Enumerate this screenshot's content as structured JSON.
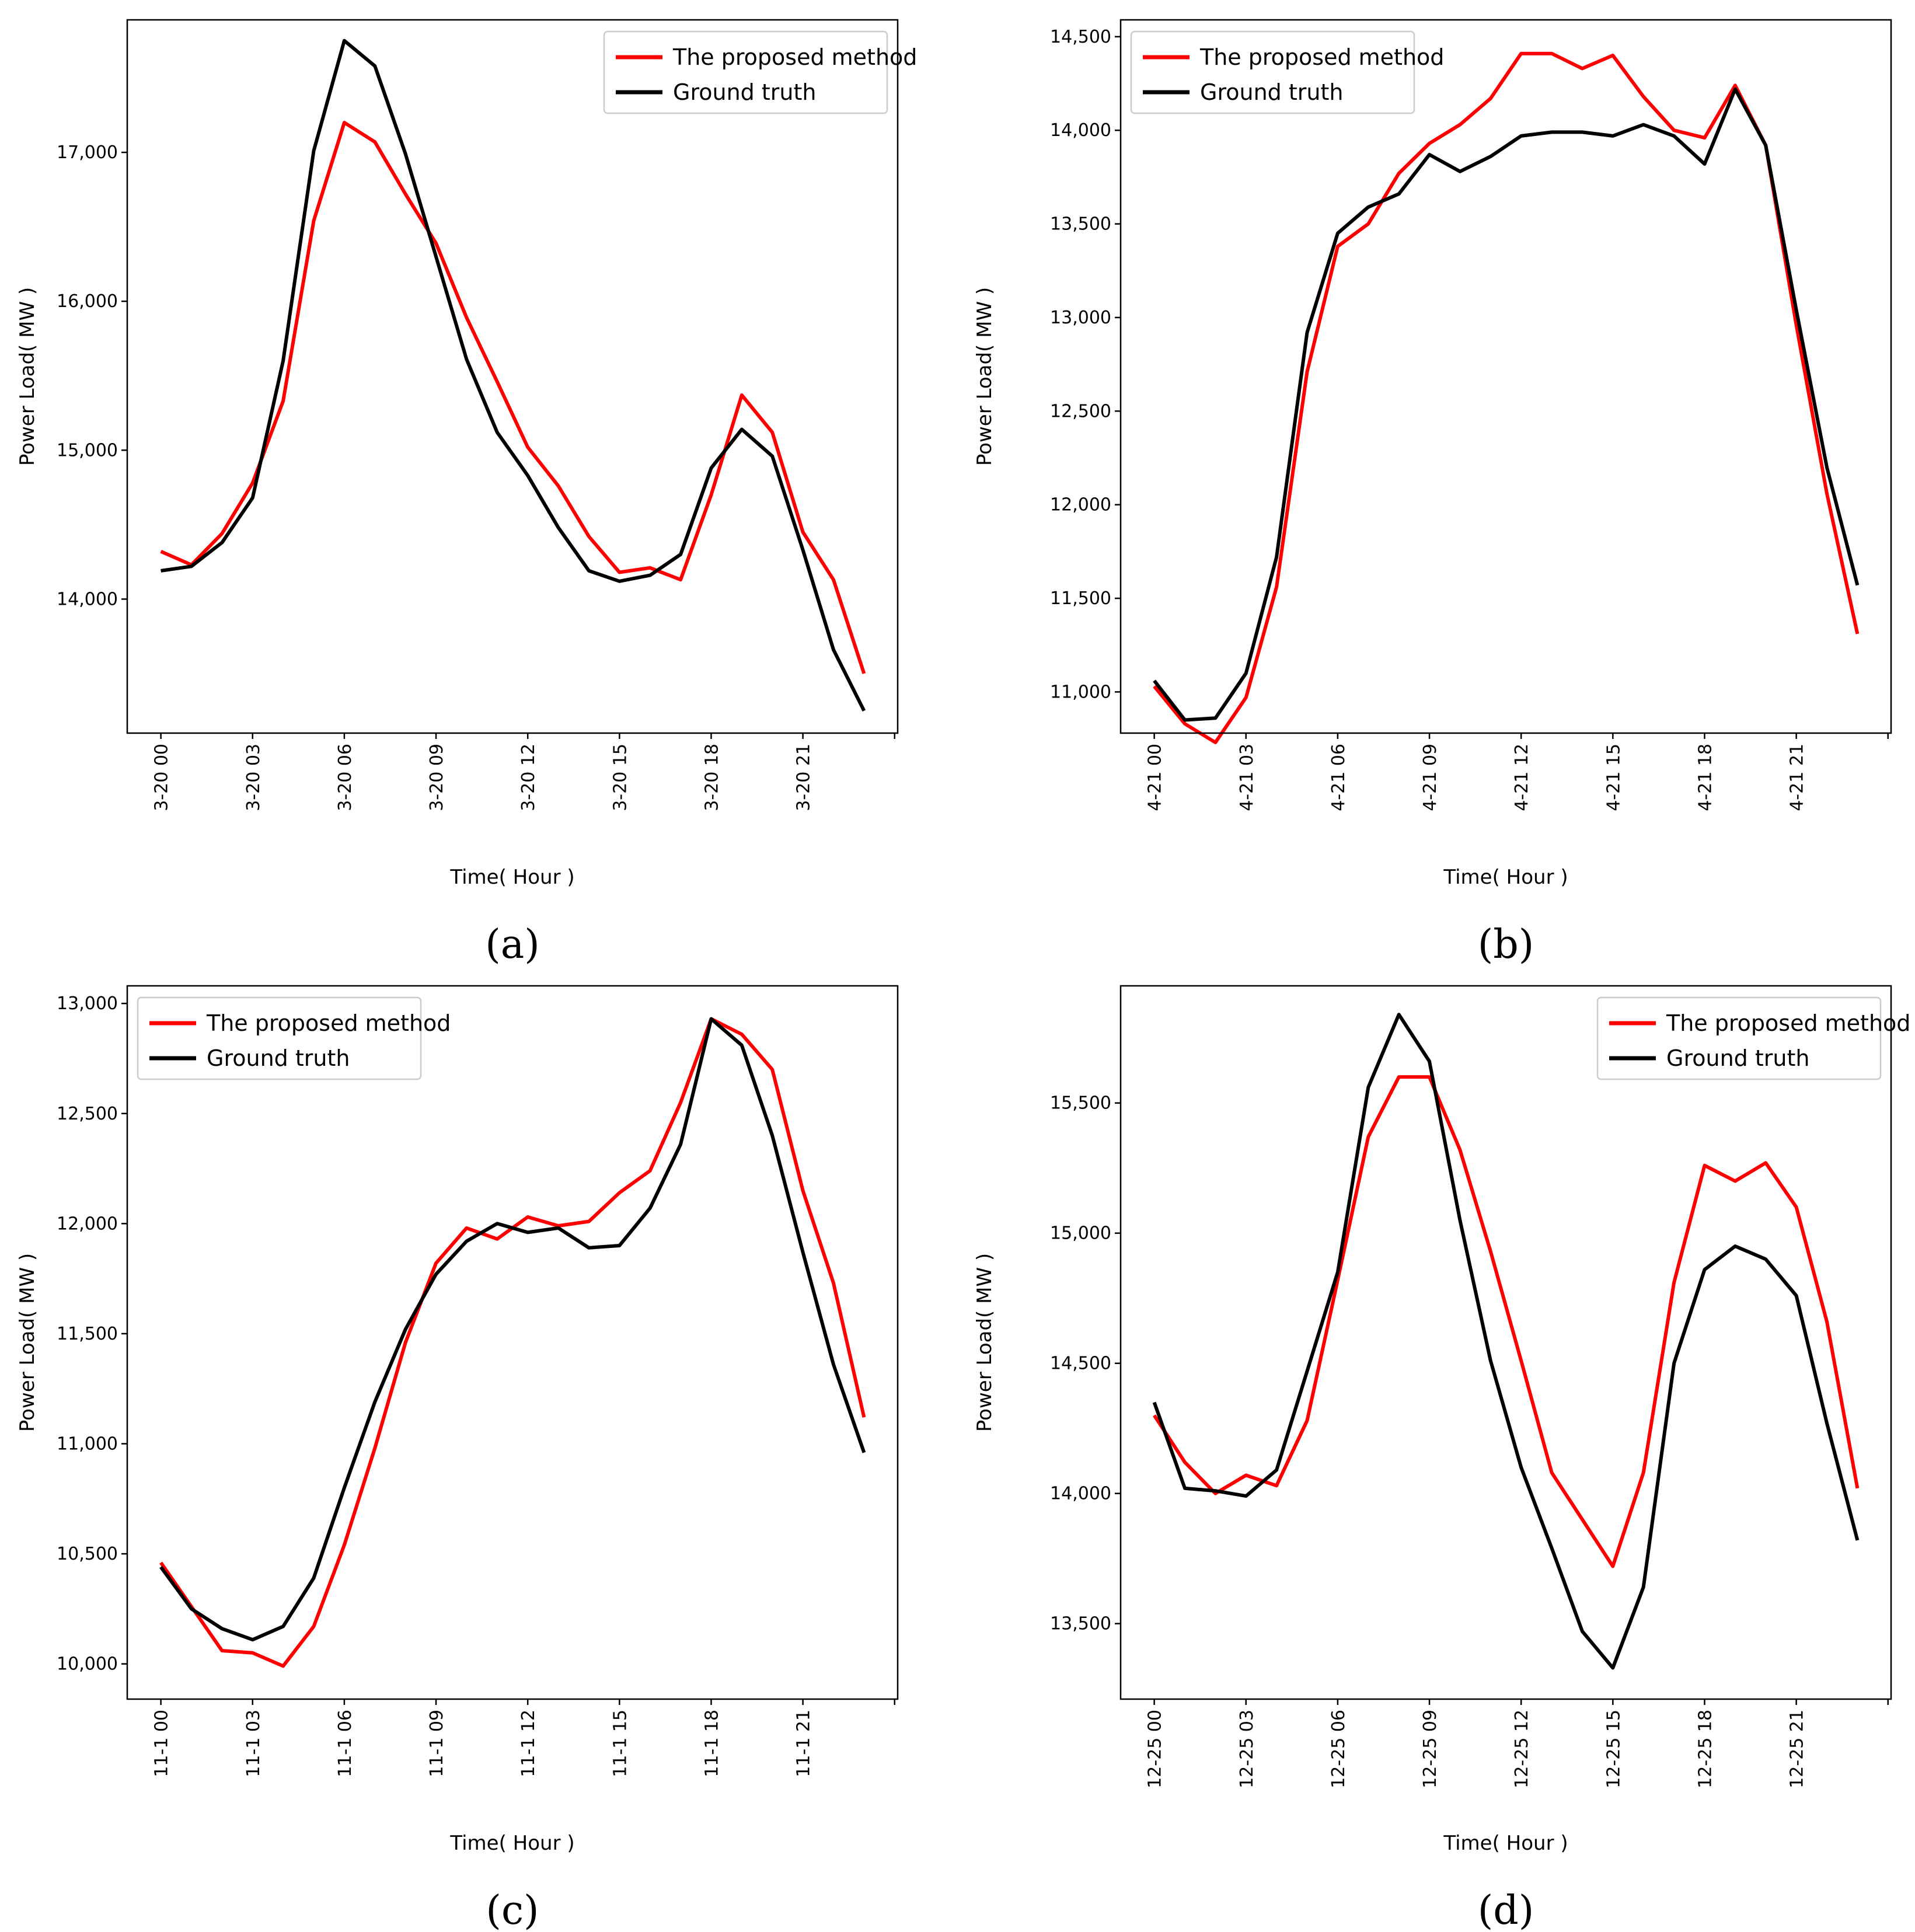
{
  "chart_data": [
    {
      "type": "line",
      "panel_label": "(a)",
      "xlabel": "Time( Hour )",
      "ylabel": "Power Load( MW )",
      "x": [
        0,
        1,
        2,
        3,
        4,
        5,
        6,
        7,
        8,
        9,
        10,
        11,
        12,
        13,
        14,
        15,
        16,
        17,
        18,
        19,
        20,
        21,
        22,
        23
      ],
      "xlim": [
        -1.1,
        24.1
      ],
      "x_ticks": [
        0,
        3,
        6,
        9,
        12,
        15,
        18,
        21
      ],
      "x_tick_labels": [
        "3-20 00",
        "3-20 03",
        "3-20 06",
        "3-20 09",
        "3-20 12",
        "3-20 15",
        "3-20 18",
        "3-20 21"
      ],
      "ylim": [
        13100,
        17890
      ],
      "y_ticks": [
        14000,
        15000,
        16000,
        17000
      ],
      "y_tick_labels": [
        "14,000",
        "15,000",
        "16,000",
        "17,000"
      ],
      "legend_position": "top-right",
      "series": [
        {
          "name": "The proposed method",
          "color": "#ff0000",
          "values": [
            14320,
            14230,
            14440,
            14780,
            15330,
            16540,
            17200,
            17070,
            16720,
            16390,
            15890,
            15460,
            15020,
            14760,
            14420,
            14180,
            14210,
            14130,
            14700,
            15370,
            15120,
            14450,
            14130,
            13500
          ]
        },
        {
          "name": "Ground truth",
          "color": "#000000",
          "values": [
            14190,
            14220,
            14380,
            14680,
            15600,
            17010,
            17750,
            17580,
            16990,
            16300,
            15610,
            15120,
            14830,
            14480,
            14190,
            14120,
            14160,
            14300,
            14880,
            15140,
            14960,
            14330,
            13660,
            13250
          ]
        }
      ]
    },
    {
      "type": "line",
      "panel_label": "(b)",
      "xlabel": "Time( Hour )",
      "ylabel": "Power Load( MW )",
      "x": [
        0,
        1,
        2,
        3,
        4,
        5,
        6,
        7,
        8,
        9,
        10,
        11,
        12,
        13,
        14,
        15,
        16,
        17,
        18,
        19,
        20,
        21,
        22,
        23
      ],
      "xlim": [
        -1.1,
        24.1
      ],
      "x_ticks": [
        0,
        3,
        6,
        9,
        12,
        15,
        18,
        21
      ],
      "x_tick_labels": [
        "4-21 00",
        "4-21 03",
        "4-21 06",
        "4-21 09",
        "4-21 12",
        "4-21 15",
        "4-21 18",
        "4-21 21"
      ],
      "ylim": [
        10780,
        14590
      ],
      "y_ticks": [
        11000,
        11500,
        12000,
        12500,
        13000,
        13500,
        14000,
        14500
      ],
      "y_tick_labels": [
        "11,000",
        "11,500",
        "12,000",
        "12,500",
        "13,000",
        "13,500",
        "14,000",
        "14,500"
      ],
      "legend_position": "top-left",
      "series": [
        {
          "name": "The proposed method",
          "color": "#ff0000",
          "values": [
            11030,
            10830,
            10730,
            10970,
            11560,
            12710,
            13380,
            13500,
            13770,
            13930,
            14030,
            14170,
            14410,
            14410,
            14330,
            14400,
            14180,
            14000,
            13960,
            14240,
            13920,
            12960,
            12060,
            11310
          ]
        },
        {
          "name": "Ground truth",
          "color": "#000000",
          "values": [
            11060,
            10850,
            10860,
            11100,
            11720,
            12920,
            13450,
            13590,
            13660,
            13870,
            13780,
            13860,
            13970,
            13990,
            13990,
            13970,
            14030,
            13970,
            13820,
            14220,
            13920,
            13040,
            12200,
            11570
          ]
        }
      ]
    },
    {
      "type": "line",
      "panel_label": "(c)",
      "xlabel": "Time( Hour )",
      "ylabel": "Power Load( MW )",
      "x": [
        0,
        1,
        2,
        3,
        4,
        5,
        6,
        7,
        8,
        9,
        10,
        11,
        12,
        13,
        14,
        15,
        16,
        17,
        18,
        19,
        20,
        21,
        22,
        23
      ],
      "xlim": [
        -1.1,
        24.1
      ],
      "x_ticks": [
        0,
        3,
        6,
        9,
        12,
        15,
        18,
        21
      ],
      "x_tick_labels": [
        "11-1 00",
        "11-1 03",
        "11-1 06",
        "11-1 09",
        "11-1 12",
        "11-1 15",
        "11-1 18",
        "11-1 21"
      ],
      "ylim": [
        9840,
        13080
      ],
      "y_ticks": [
        10000,
        10500,
        11000,
        11500,
        12000,
        12500,
        13000
      ],
      "y_tick_labels": [
        "10,000",
        "10,500",
        "11,000",
        "11,500",
        "12,000",
        "12,500",
        "13,000"
      ],
      "legend_position": "top-left",
      "series": [
        {
          "name": "The proposed method",
          "color": "#ff0000",
          "values": [
            10460,
            10260,
            10060,
            10050,
            9990,
            10170,
            10540,
            10980,
            11460,
            11820,
            11980,
            11930,
            12030,
            11990,
            12010,
            12140,
            12240,
            12550,
            12930,
            12860,
            12700,
            12150,
            11730,
            11120
          ]
        },
        {
          "name": "Ground truth",
          "color": "#000000",
          "values": [
            10440,
            10250,
            10160,
            10110,
            10170,
            10390,
            10800,
            11190,
            11520,
            11770,
            11920,
            12000,
            11960,
            11980,
            11890,
            11900,
            12070,
            12360,
            12930,
            12810,
            12400,
            11870,
            11360,
            10960
          ]
        }
      ]
    },
    {
      "type": "line",
      "panel_label": "(d)",
      "xlabel": "Time( Hour )",
      "ylabel": "Power Load( MW )",
      "x": [
        0,
        1,
        2,
        3,
        4,
        5,
        6,
        7,
        8,
        9,
        10,
        11,
        12,
        13,
        14,
        15,
        16,
        17,
        18,
        19,
        20,
        21,
        22,
        23
      ],
      "xlim": [
        -1.1,
        24.1
      ],
      "x_ticks": [
        0,
        3,
        6,
        9,
        12,
        15,
        18,
        21
      ],
      "x_tick_labels": [
        "12-25 00",
        "12-25 03",
        "12-25 06",
        "12-25 09",
        "12-25 12",
        "12-25 15",
        "12-25 18",
        "12-25 21"
      ],
      "ylim": [
        13210,
        15950
      ],
      "y_ticks": [
        13500,
        14000,
        14500,
        15000,
        15500
      ],
      "y_tick_labels": [
        "13,500",
        "14,000",
        "14,500",
        "15,000",
        "15,500"
      ],
      "legend_position": "top-right",
      "series": [
        {
          "name": "The proposed method",
          "color": "#ff0000",
          "values": [
            14300,
            14120,
            14000,
            14070,
            14030,
            14280,
            14820,
            15370,
            15600,
            15600,
            15320,
            14930,
            14510,
            14080,
            13900,
            13720,
            14080,
            14810,
            15260,
            15200,
            15270,
            15100,
            14660,
            14020
          ]
        },
        {
          "name": "Ground truth",
          "color": "#000000",
          "values": [
            14350,
            14020,
            14010,
            13990,
            14090,
            14470,
            14850,
            15560,
            15840,
            15660,
            15050,
            14510,
            14100,
            13790,
            13470,
            13330,
            13640,
            14500,
            14860,
            14950,
            14900,
            14760,
            14270,
            13820
          ]
        }
      ]
    }
  ]
}
